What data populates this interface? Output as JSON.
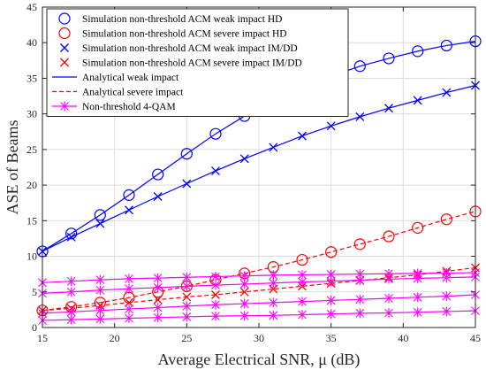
{
  "chart_data": {
    "type": "line",
    "xlabel": "Average Electrical SNR, μ (dB)",
    "ylabel": "ASE of Beams",
    "xlim": [
      15,
      45
    ],
    "ylim": [
      0,
      45
    ],
    "xticks": [
      15,
      20,
      25,
      30,
      35,
      40,
      45
    ],
    "yticks": [
      0,
      5,
      10,
      15,
      20,
      25,
      30,
      35,
      40,
      45
    ],
    "grid": true,
    "legend_position": "top-left",
    "legend": [
      {
        "label": "Simulation non-threshold ACM weak impact HD",
        "color": "#0000ff",
        "marker": "circle",
        "line": "none"
      },
      {
        "label": "Simulation non-threshold ACM severe impact HD",
        "color": "#ff0000",
        "marker": "circle",
        "line": "none"
      },
      {
        "label": "Simulation non-threshold ACM weak impact IM/DD",
        "color": "#0000ff",
        "marker": "x",
        "line": "none"
      },
      {
        "label": "Simulation non-threshold ACM severe impact IM/DD",
        "color": "#ff0000",
        "marker": "x",
        "line": "none"
      },
      {
        "label": "Analytical weak impact",
        "color": "#0000ff",
        "marker": "none",
        "line": "solid"
      },
      {
        "label": "Analytical severe impact",
        "color": "#ff0000",
        "marker": "none",
        "line": "dashed"
      },
      {
        "label": "Non-threshold 4-QAM",
        "color": "#ff00ff",
        "marker": "asterisk",
        "line": "solid"
      }
    ],
    "x": [
      15,
      17,
      19,
      21,
      23,
      25,
      27,
      29,
      31,
      33,
      35,
      37,
      39,
      41,
      43,
      45
    ],
    "series": [
      {
        "color": "#0000ff",
        "line": "solid",
        "marker": "circle",
        "values": [
          10.7,
          13.2,
          15.8,
          18.6,
          21.5,
          24.4,
          27.2,
          29.7,
          31.9,
          33.7,
          35.3,
          36.7,
          37.8,
          38.8,
          39.6,
          40.2
        ]
      },
      {
        "color": "#0000ff",
        "line": "solid",
        "marker": "x",
        "values": [
          10.7,
          12.7,
          14.6,
          16.5,
          18.4,
          20.2,
          22.0,
          23.7,
          25.3,
          26.9,
          28.3,
          29.6,
          30.8,
          31.9,
          33.0,
          34.0
        ]
      },
      {
        "color": "#ff0000",
        "line": "dashed",
        "marker": "circle",
        "values": [
          2.4,
          2.9,
          3.5,
          4.2,
          5.0,
          5.8,
          6.7,
          7.6,
          8.5,
          9.5,
          10.6,
          11.7,
          12.8,
          14.0,
          15.2,
          16.3
        ]
      },
      {
        "color": "#ff0000",
        "line": "dashed",
        "marker": "x",
        "values": [
          2.4,
          2.7,
          3.1,
          3.5,
          3.9,
          4.3,
          4.6,
          5.0,
          5.4,
          5.8,
          6.2,
          6.6,
          7.0,
          7.4,
          7.9,
          8.4
        ]
      },
      {
        "color": "#ff00ff",
        "line": "solid",
        "marker": "asterisk",
        "values": [
          6.3,
          6.5,
          6.7,
          6.85,
          6.95,
          7.05,
          7.15,
          7.25,
          7.35,
          7.4,
          7.45,
          7.5,
          7.55,
          7.6,
          7.65,
          7.7
        ]
      },
      {
        "color": "#ff00ff",
        "line": "solid",
        "marker": "asterisk",
        "values": [
          4.8,
          5.0,
          5.25,
          5.45,
          5.6,
          5.8,
          5.95,
          6.1,
          6.25,
          6.4,
          6.5,
          6.65,
          6.8,
          6.9,
          7.0,
          7.1
        ]
      },
      {
        "color": "#ff00ff",
        "line": "solid",
        "marker": "asterisk",
        "values": [
          2.0,
          2.2,
          2.4,
          2.6,
          2.8,
          3.0,
          3.2,
          3.35,
          3.5,
          3.65,
          3.8,
          3.95,
          4.1,
          4.25,
          4.4,
          4.6
        ]
      },
      {
        "color": "#ff00ff",
        "line": "solid",
        "marker": "asterisk",
        "values": [
          1.0,
          1.1,
          1.2,
          1.3,
          1.4,
          1.5,
          1.6,
          1.65,
          1.7,
          1.8,
          1.9,
          2.0,
          2.05,
          2.15,
          2.25,
          2.35
        ]
      }
    ]
  }
}
